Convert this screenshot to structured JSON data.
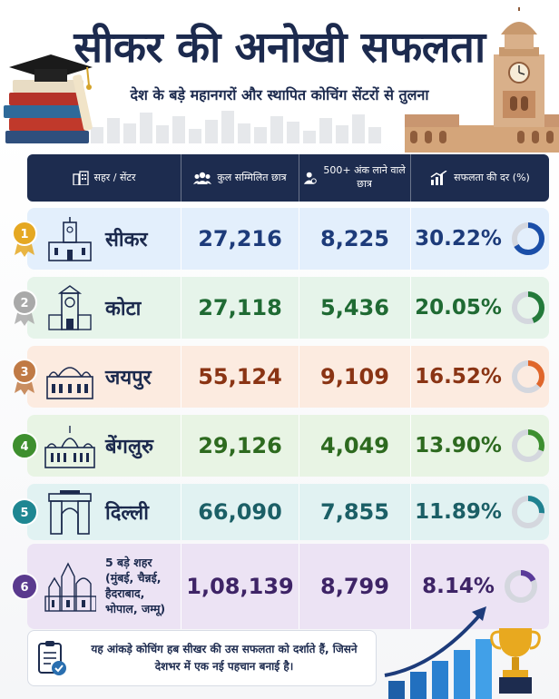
{
  "header": {
    "title": "सीकर की अनोखी सफलता",
    "subtitle": "देश के बड़े महानगरों और स्थापित कोचिंग सेंटरों से तुलना"
  },
  "table": {
    "columns": [
      "सहर / सेंटर",
      "कुल सम्मिलित छात्र",
      "500+ अंक लाने वाले छात्र",
      "सफलता की दर (%)"
    ],
    "rows": [
      {
        "rank": "1",
        "city": "सीकर",
        "total": "27,216",
        "top": "8,225",
        "rate": "30.22%",
        "rate_value": 30.22,
        "medal": "gold"
      },
      {
        "rank": "2",
        "city": "कोटा",
        "total": "27,118",
        "top": "5,436",
        "rate": "20.05%",
        "rate_value": 20.05,
        "medal": "silver"
      },
      {
        "rank": "3",
        "city": "जयपुर",
        "total": "55,124",
        "top": "9,109",
        "rate": "16.52%",
        "rate_value": 16.52,
        "medal": "bronze"
      },
      {
        "rank": "4",
        "city": "बेंगलुरु",
        "total": "29,126",
        "top": "4,049",
        "rate": "13.90%",
        "rate_value": 13.9,
        "medal": "green"
      },
      {
        "rank": "5",
        "city": "दिल्ली",
        "total": "66,090",
        "top": "7,855",
        "rate": "11.89%",
        "rate_value": 11.89,
        "medal": "teal"
      },
      {
        "rank": "6",
        "city": "5 बड़े शहर (मुंबई, चैन्नई, हैदराबाद, भोपाल, जम्मू)",
        "total": "1,08,139",
        "top": "8,799",
        "rate": "8.14%",
        "rate_value": 8.14,
        "medal": "purple"
      }
    ]
  },
  "footer": {
    "note": "यह आंकड़े कोचिंग हब सीखर की उस सफलता को दर्शाते हैं, जिसने देशभर में एक नई पहचान बनाई है।"
  },
  "colors": {
    "navy": "#1d2c4f",
    "row_bg": [
      "#e3effc",
      "#e6f4ea",
      "#fcebe0",
      "#e8f4e4",
      "#e1f2f2",
      "#ece3f4"
    ],
    "value_color": [
      "#1d3b7a",
      "#1f6a33",
      "#8a3414",
      "#2d6a1f",
      "#1b5f66",
      "#3e2466"
    ],
    "ring_color": [
      "#1a4ea8",
      "#237a3a",
      "#e0662a",
      "#3c8f2f",
      "#1f8290",
      "#5a3a9a"
    ],
    "medal": {
      "gold": "#e5a822",
      "silver": "#a9a9a9",
      "bronze": "#c07a45",
      "green": "#3e8f2e",
      "teal": "#1f8792",
      "purple": "#5a3a8e"
    }
  },
  "icons": {
    "city_header": "building-icon",
    "total_header": "group-icon",
    "top_header": "student-icon",
    "rate_header": "bar-chart-icon",
    "footer": "clipboard-check-icon"
  }
}
